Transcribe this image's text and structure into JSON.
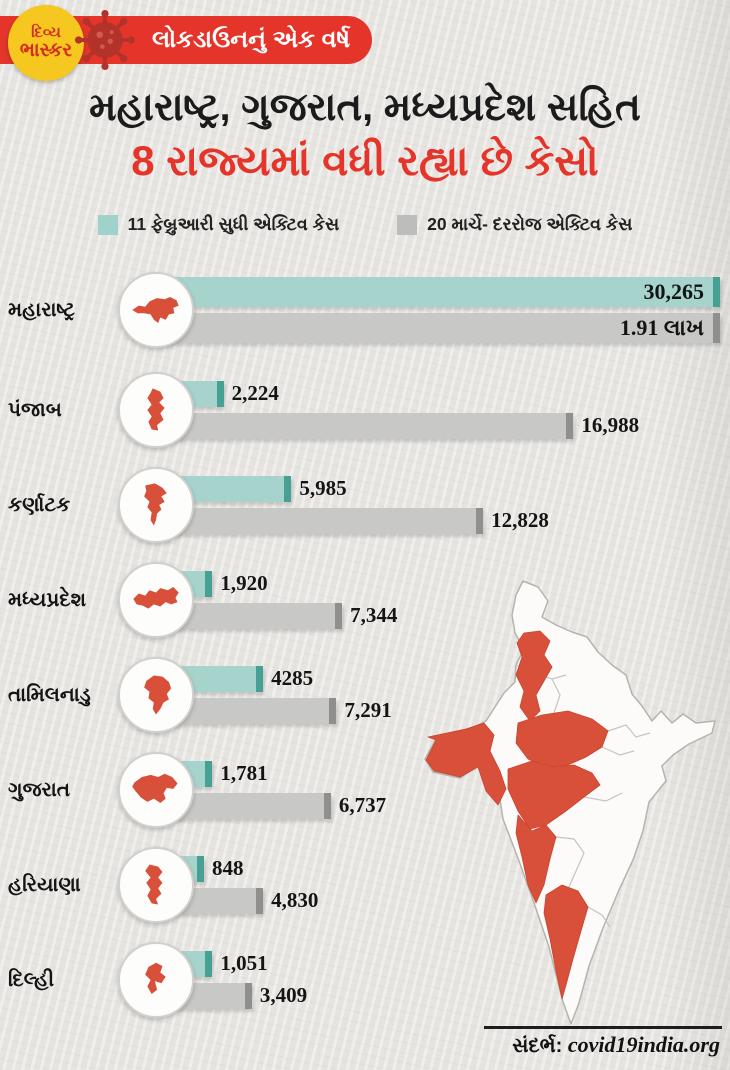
{
  "header": {
    "logo_top": "દિવ્ય",
    "logo_bottom": "ભાસ્કર",
    "banner_text": "લોકડાઉનનું એક વર્ષ"
  },
  "title": {
    "line1": "મહારાષ્ટ્ર, ગુજરાત, મધ્યપ્રદેશ સહિત",
    "line2": "8 રાજ્યમાં વધી રહ્યા છે કેસો"
  },
  "legend": {
    "item1": "11 ફેબ્રુઆરી સુધી એક્ટિવ કેસ",
    "item2": "20 માર્ચે- દરરોજ એક્ટિવ કેસ"
  },
  "source": {
    "prefix": "સંદર્ભ: ",
    "domain": "covid19india.org"
  },
  "colors": {
    "banner_red": "#e5352b",
    "title_red": "#e5352b",
    "teal_bar": "#a6d4cd",
    "teal_cap": "#47a094",
    "gray_bar": "#c8c8c6",
    "gray_cap": "#8f8f8d",
    "state_red": "#d9503a",
    "logo_yellow": "#f6c71f",
    "background": "#eae8e4"
  },
  "icons": {
    "virus_icon": "coronavirus",
    "logo_icon": "divya-bhaskar-logo",
    "india_map": "india-map-highlighted-states",
    "state_icons": [
      "maharashtra-map",
      "punjab-map",
      "karnataka-map",
      "madhya-pradesh-map",
      "tamil-nadu-map",
      "gujarat-map",
      "haryana-map",
      "delhi-map"
    ]
  },
  "chart_data": {
    "type": "bar",
    "orientation": "horizontal",
    "legend_position": "top",
    "series_names": [
      "11 ફેબ્રુઆરી સુધી એક્ટિવ કેસ",
      "20 માર્ચે- દરરોજ એક્ટિવ કેસ"
    ],
    "rows": [
      {
        "state": "મહારાષ્ટ્ર",
        "feb_label": "30,265",
        "mar_label": "1.91 લાખ",
        "feb_value": 30265,
        "mar_value": 191000,
        "feb_pct": 100,
        "mar_pct": 100
      },
      {
        "state": "પંજાબ",
        "feb_label": "2,224",
        "mar_label": "16,988",
        "feb_value": 2224,
        "mar_value": 16988,
        "feb_pct": 12,
        "mar_pct": 74
      },
      {
        "state": "કર્ણાટક",
        "feb_label": "5,985",
        "mar_label": "12,828",
        "feb_value": 5985,
        "mar_value": 12828,
        "feb_pct": 24,
        "mar_pct": 58
      },
      {
        "state": "મધ્યપ્રદેશ",
        "feb_label": "1,920",
        "mar_label": "7,344",
        "feb_value": 1920,
        "mar_value": 7344,
        "feb_pct": 10,
        "mar_pct": 33
      },
      {
        "state": "તામિલનાડુ",
        "feb_label": "4285",
        "mar_label": "7,291",
        "feb_value": 4285,
        "mar_value": 7291,
        "feb_pct": 19,
        "mar_pct": 32
      },
      {
        "state": "ગુજરાત",
        "feb_label": "1,781",
        "mar_label": "6,737",
        "feb_value": 1781,
        "mar_value": 6737,
        "feb_pct": 10,
        "mar_pct": 31
      },
      {
        "state": "હરિયાણા",
        "feb_label": "848",
        "mar_label": "4,830",
        "feb_value": 848,
        "mar_value": 4830,
        "feb_pct": 8.5,
        "mar_pct": 19
      },
      {
        "state": "દિલ્હી",
        "feb_label": "1,051",
        "mar_label": "3,409",
        "feb_value": 1051,
        "mar_value": 3409,
        "feb_pct": 10,
        "mar_pct": 17
      }
    ]
  }
}
